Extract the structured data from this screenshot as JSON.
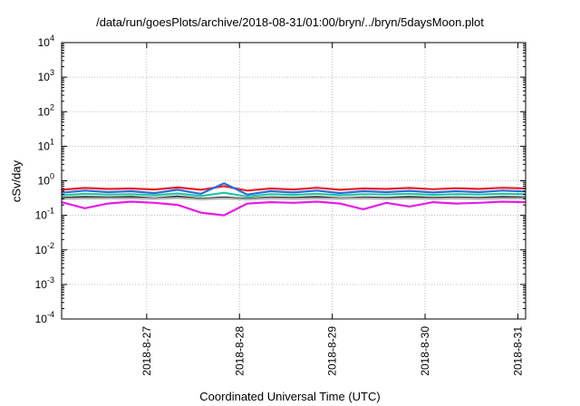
{
  "chart_data": {
    "type": "line",
    "title": "/data/run/goesPlots/archive/2018-08-31/01:00/bryn/../bryn/5daysMoon.plot",
    "xlabel": "Coordinated Universal Time (UTC)",
    "ylabel": "cSv/day",
    "yscale": "log",
    "ylim": [
      0.0001,
      10000
    ],
    "xlim": [
      "2018-08-26 02:00",
      "2018-08-31 02:00"
    ],
    "x_ticks": [
      "2018-8-27",
      "2018-8-28",
      "2018-8-29",
      "2018-8-30",
      "2018-8-31"
    ],
    "y_ticks": [
      {
        "value": 0.0001,
        "base": "10",
        "exp": "-4"
      },
      {
        "value": 0.001,
        "base": "10",
        "exp": "-3"
      },
      {
        "value": 0.01,
        "base": "10",
        "exp": "-2"
      },
      {
        "value": 0.1,
        "base": "10",
        "exp": "-1"
      },
      {
        "value": 1,
        "base": "10",
        "exp": "0"
      },
      {
        "value": 10,
        "base": "10",
        "exp": "1"
      },
      {
        "value": 100,
        "base": "10",
        "exp": "2"
      },
      {
        "value": 1000,
        "base": "10",
        "exp": "3"
      },
      {
        "value": 10000,
        "base": "10",
        "exp": "4"
      }
    ],
    "grid": true,
    "legend": "none",
    "x": [
      "2018-08-26 02:00",
      "2018-08-26 08:00",
      "2018-08-26 14:00",
      "2018-08-26 20:00",
      "2018-08-27 02:00",
      "2018-08-27 08:00",
      "2018-08-27 14:00",
      "2018-08-27 20:00",
      "2018-08-28 02:00",
      "2018-08-28 08:00",
      "2018-08-28 14:00",
      "2018-08-28 20:00",
      "2018-08-29 02:00",
      "2018-08-29 08:00",
      "2018-08-29 14:00",
      "2018-08-29 20:00",
      "2018-08-30 02:00",
      "2018-08-30 08:00",
      "2018-08-30 14:00",
      "2018-08-30 20:00",
      "2018-08-31 02:00"
    ],
    "series": [
      {
        "color": "#e8202a",
        "values": [
          0.55,
          0.62,
          0.58,
          0.6,
          0.56,
          0.64,
          0.55,
          0.7,
          0.52,
          0.6,
          0.56,
          0.63,
          0.55,
          0.6,
          0.58,
          0.62,
          0.57,
          0.61,
          0.58,
          0.63,
          0.6
        ]
      },
      {
        "color": "#2b6fd6",
        "values": [
          0.45,
          0.52,
          0.47,
          0.5,
          0.44,
          0.55,
          0.42,
          0.85,
          0.4,
          0.5,
          0.46,
          0.52,
          0.44,
          0.5,
          0.47,
          0.51,
          0.46,
          0.5,
          0.47,
          0.52,
          0.49
        ]
      },
      {
        "color": "#22c4a6",
        "values": [
          0.38,
          0.42,
          0.4,
          0.41,
          0.38,
          0.43,
          0.36,
          0.45,
          0.35,
          0.41,
          0.39,
          0.42,
          0.38,
          0.41,
          0.4,
          0.42,
          0.39,
          0.41,
          0.4,
          0.42,
          0.41
        ]
      },
      {
        "color": "#1f1f1f",
        "values": [
          0.32,
          0.34,
          0.33,
          0.34,
          0.31,
          0.35,
          0.3,
          0.33,
          0.3,
          0.33,
          0.32,
          0.34,
          0.31,
          0.33,
          0.32,
          0.34,
          0.32,
          0.33,
          0.32,
          0.34,
          0.33
        ]
      },
      {
        "color": "#b0b0b0",
        "values": [
          0.3,
          0.31,
          0.31,
          0.31,
          0.3,
          0.32,
          0.29,
          0.31,
          0.29,
          0.31,
          0.3,
          0.31,
          0.3,
          0.31,
          0.3,
          0.31,
          0.3,
          0.31,
          0.3,
          0.31,
          0.31
        ]
      },
      {
        "color": "#e61ce6",
        "values": [
          0.24,
          0.16,
          0.22,
          0.25,
          0.23,
          0.2,
          0.12,
          0.1,
          0.22,
          0.24,
          0.23,
          0.25,
          0.22,
          0.15,
          0.23,
          0.18,
          0.24,
          0.22,
          0.23,
          0.25,
          0.24
        ]
      }
    ]
  }
}
